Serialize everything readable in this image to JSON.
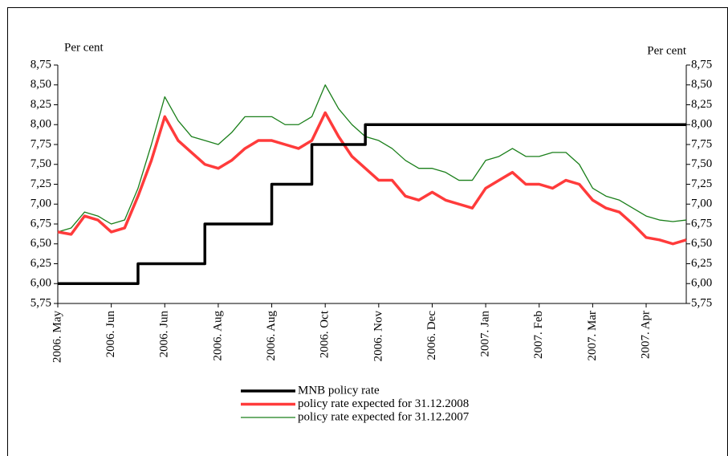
{
  "chart_data": {
    "type": "line",
    "y_label": "Per cent",
    "y2_label": "Per cent",
    "categories": [
      "2006. May",
      null,
      null,
      null,
      "2006. Jun",
      null,
      null,
      null,
      "2006. Jun",
      null,
      null,
      null,
      "2006. Aug",
      null,
      null,
      null,
      "2006. Aug",
      null,
      null,
      null,
      "2006. Oct",
      null,
      null,
      null,
      "2006. Nov",
      null,
      null,
      null,
      "2006. Dec",
      null,
      null,
      null,
      "2007. Jan",
      null,
      null,
      null,
      "2007. Feb",
      null,
      null,
      null,
      "2007. Mar",
      null,
      null,
      null,
      "2007. Apr",
      null,
      null,
      null
    ],
    "ylim": [
      5.75,
      8.75
    ],
    "yticks": [
      {
        "value": 5.75,
        "label": "5,75"
      },
      {
        "value": 6.0,
        "label": "6,00"
      },
      {
        "value": 6.25,
        "label": "6,25"
      },
      {
        "value": 6.5,
        "label": "6,50"
      },
      {
        "value": 6.75,
        "label": "6,75"
      },
      {
        "value": 7.0,
        "label": "7,00"
      },
      {
        "value": 7.25,
        "label": "7,25"
      },
      {
        "value": 7.5,
        "label": "7,50"
      },
      {
        "value": 7.75,
        "label": "7,75"
      },
      {
        "value": 8.0,
        "label": "8,00"
      },
      {
        "value": 8.25,
        "label": "8,25"
      },
      {
        "value": 8.5,
        "label": "8,50"
      },
      {
        "value": 8.75,
        "label": "8,75"
      }
    ],
    "y2lim": [
      5.75,
      8.75
    ],
    "y2ticks": [
      {
        "value": 5.75,
        "label": "5,75"
      },
      {
        "value": 6.0,
        "label": "6,00"
      },
      {
        "value": 6.25,
        "label": "6,25"
      },
      {
        "value": 6.5,
        "label": "6,50"
      },
      {
        "value": 6.75,
        "label": "6,75"
      },
      {
        "value": 7.0,
        "label": "7,00"
      },
      {
        "value": 7.25,
        "label": "7,25"
      },
      {
        "value": 7.5,
        "label": "7,50"
      },
      {
        "value": 7.75,
        "label": "7,75"
      },
      {
        "value": 8.0,
        "label": "8,00"
      },
      {
        "value": 8.25,
        "label": "8,25"
      },
      {
        "value": 8.5,
        "label": "8,50"
      },
      {
        "value": 8.75,
        "label": "8,75"
      }
    ],
    "grid": false,
    "legend": "bottom",
    "series": [
      {
        "name": "MNB policy rate",
        "color": "#000000",
        "width": 3.5,
        "step": true,
        "values": [
          6.0,
          6.0,
          6.0,
          6.0,
          6.0,
          6.0,
          6.25,
          6.25,
          6.25,
          6.25,
          6.25,
          6.75,
          6.75,
          6.75,
          6.75,
          6.75,
          7.25,
          7.25,
          7.25,
          7.75,
          7.75,
          7.75,
          7.75,
          8.0,
          8.0,
          8.0,
          8.0,
          8.0,
          8.0,
          8.0,
          8.0,
          8.0,
          8.0,
          8.0,
          8.0,
          8.0,
          8.0,
          8.0,
          8.0,
          8.0,
          8.0,
          8.0,
          8.0,
          8.0,
          8.0,
          8.0,
          8.0,
          8.0
        ]
      },
      {
        "name": "policy rate expected for 31.12.2008",
        "color": "#ff3b3b",
        "width": 3.5,
        "step": false,
        "values": [
          6.65,
          6.62,
          6.85,
          6.8,
          6.65,
          6.7,
          7.1,
          7.55,
          8.1,
          7.8,
          7.65,
          7.5,
          7.45,
          7.55,
          7.7,
          7.8,
          7.8,
          7.75,
          7.7,
          7.8,
          8.15,
          7.85,
          7.6,
          7.45,
          7.3,
          7.3,
          7.1,
          7.05,
          7.15,
          7.05,
          7.0,
          6.95,
          7.2,
          7.3,
          7.4,
          7.25,
          7.25,
          7.2,
          7.3,
          7.25,
          7.05,
          6.95,
          6.9,
          6.75,
          6.58,
          6.55,
          6.5,
          6.55
        ]
      },
      {
        "name": "policy rate expected for 31.12.2007",
        "color": "#1a7f1a",
        "width": 1.3,
        "step": false,
        "values": [
          6.65,
          6.7,
          6.9,
          6.85,
          6.75,
          6.8,
          7.2,
          7.75,
          8.35,
          8.05,
          7.85,
          7.8,
          7.75,
          7.9,
          8.1,
          8.1,
          8.1,
          8.0,
          8.0,
          8.1,
          8.5,
          8.2,
          8.0,
          7.85,
          7.8,
          7.7,
          7.55,
          7.45,
          7.45,
          7.4,
          7.3,
          7.3,
          7.55,
          7.6,
          7.7,
          7.6,
          7.6,
          7.65,
          7.65,
          7.5,
          7.2,
          7.1,
          7.05,
          6.95,
          6.85,
          6.8,
          6.78,
          6.8
        ]
      }
    ]
  }
}
